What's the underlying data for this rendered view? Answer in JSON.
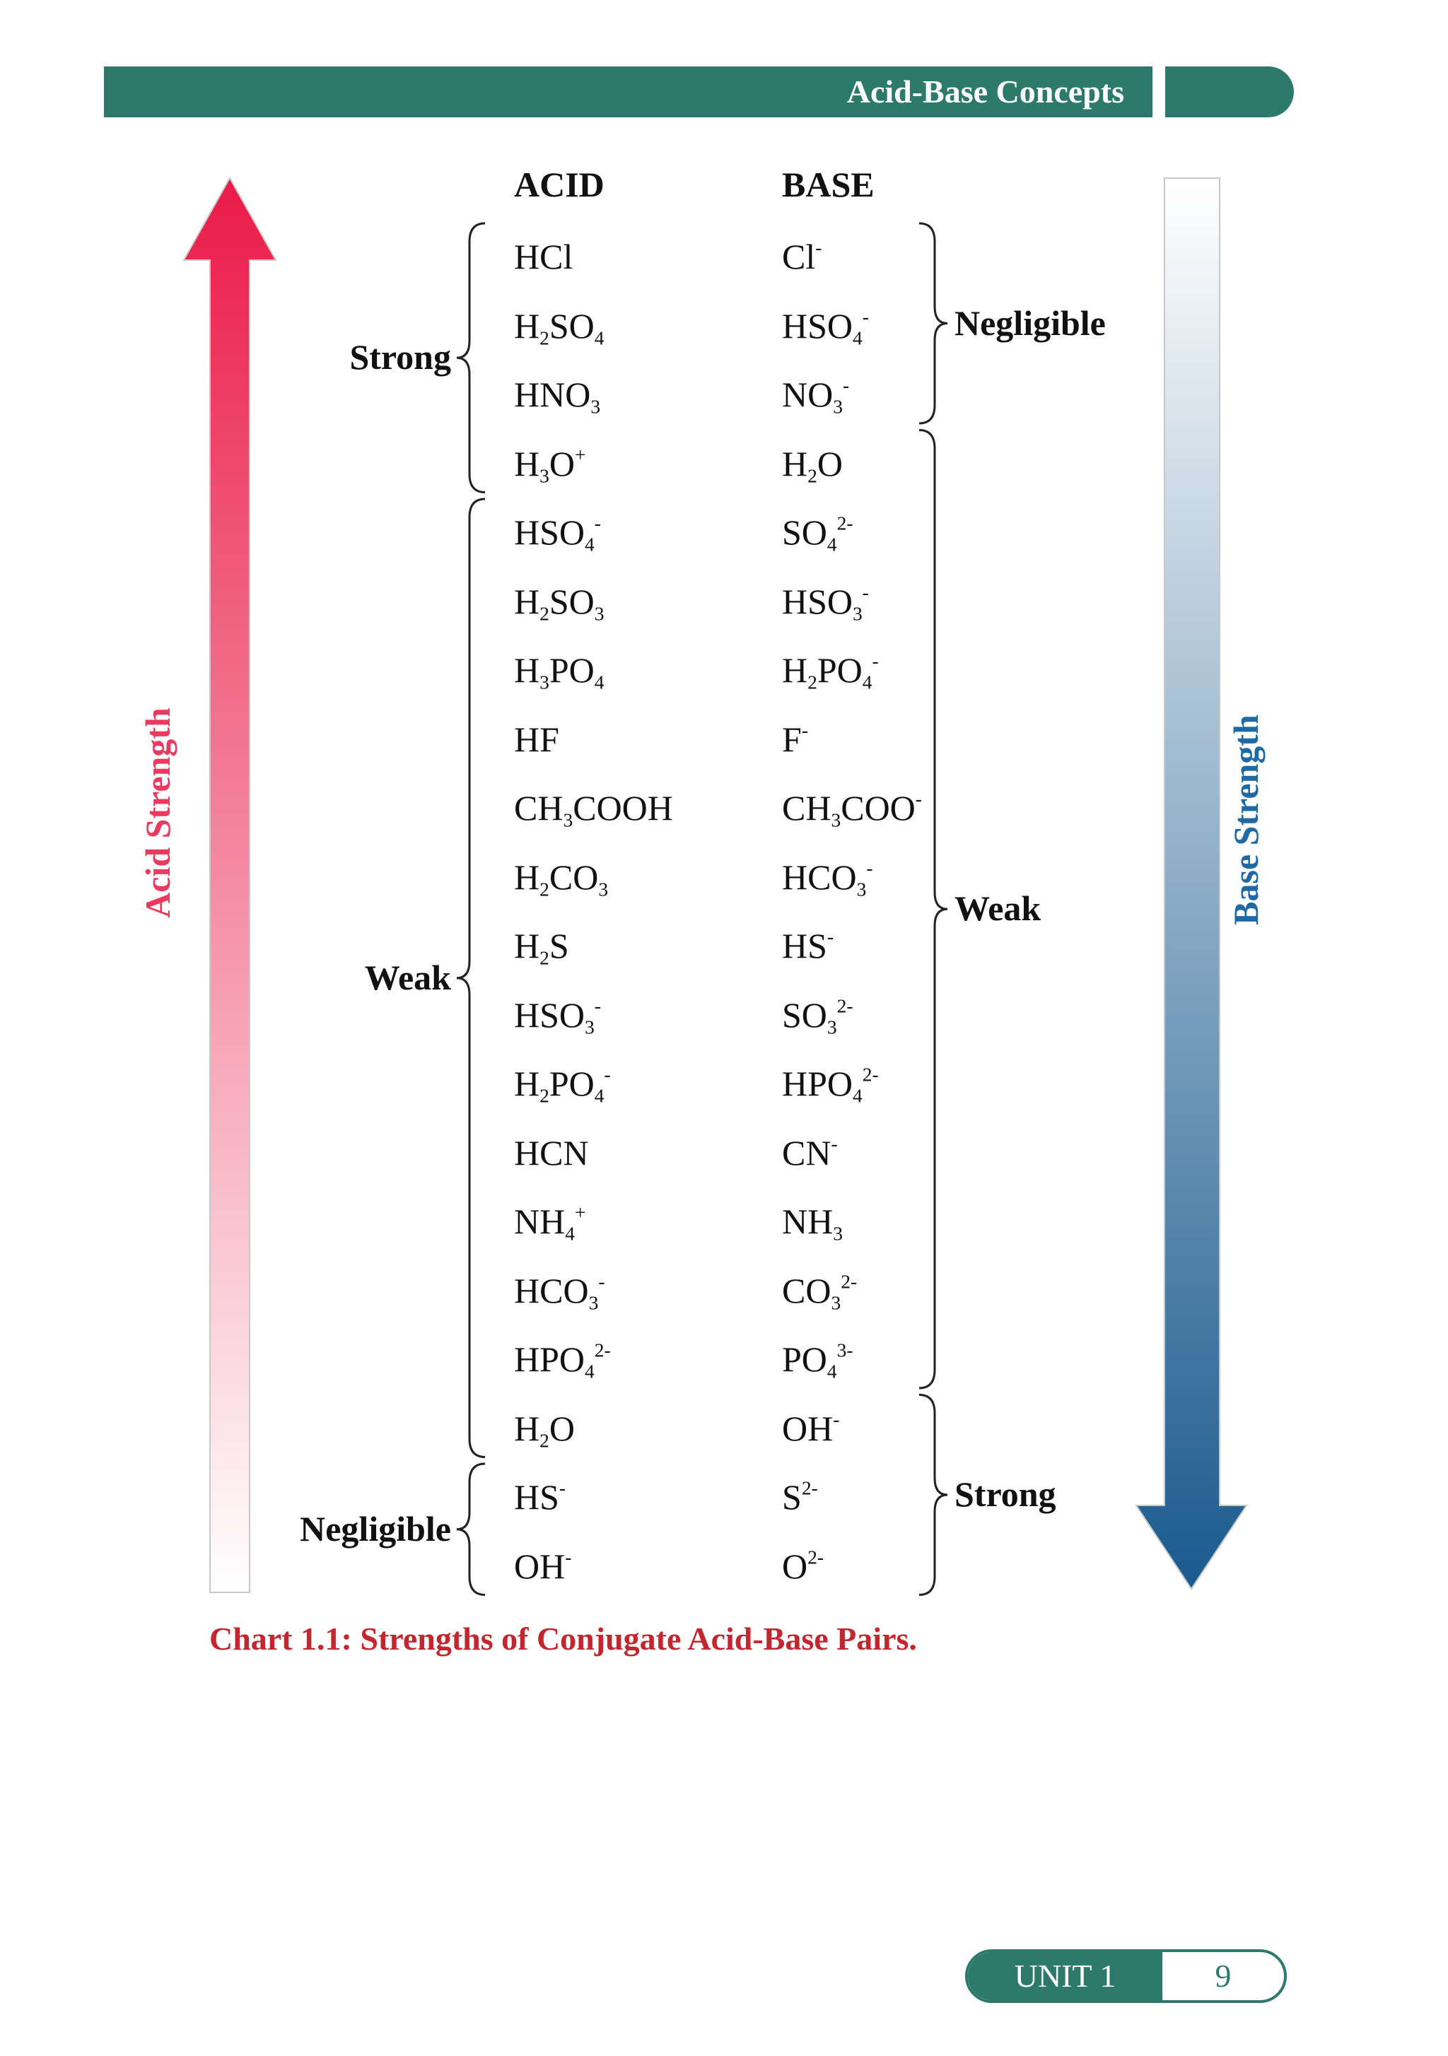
{
  "header": {
    "title": "Acid-Base  Concepts"
  },
  "columns": {
    "acid": "ACID",
    "base": "BASE"
  },
  "rows": [
    {
      "acid": [
        "HCl"
      ],
      "base": [
        "Cl",
        [
          "sup",
          "-"
        ]
      ]
    },
    {
      "acid": [
        "H",
        [
          "sub",
          "2"
        ],
        "SO",
        [
          "sub",
          "4"
        ]
      ],
      "base": [
        "HSO",
        [
          "sub",
          "4"
        ],
        [
          "sup",
          "-"
        ]
      ]
    },
    {
      "acid": [
        "HNO",
        [
          "sub",
          "3"
        ]
      ],
      "base": [
        "NO",
        [
          "sub",
          "3"
        ],
        [
          "sup",
          "-"
        ]
      ]
    },
    {
      "acid": [
        "H",
        [
          "sub",
          "3"
        ],
        "O",
        [
          "sup",
          "+"
        ]
      ],
      "base": [
        "H",
        [
          "sub",
          "2"
        ],
        "O"
      ]
    },
    {
      "acid": [
        "HSO",
        [
          "sub",
          "4"
        ],
        [
          "sup",
          "-"
        ]
      ],
      "base": [
        "SO",
        [
          "sub",
          "4"
        ],
        [
          "sup",
          "2-"
        ]
      ]
    },
    {
      "acid": [
        "H",
        [
          "sub",
          "2"
        ],
        "SO",
        [
          "sub",
          "3"
        ]
      ],
      "base": [
        "HSO",
        [
          "sub",
          "3"
        ],
        [
          "sup",
          "-"
        ]
      ]
    },
    {
      "acid": [
        "H",
        [
          "sub",
          "3"
        ],
        "PO",
        [
          "sub",
          "4"
        ]
      ],
      "base": [
        "H",
        [
          "sub",
          "2"
        ],
        "PO",
        [
          "sub",
          "4"
        ],
        [
          "sup",
          "-"
        ]
      ]
    },
    {
      "acid": [
        "HF"
      ],
      "base": [
        "F",
        [
          "sup",
          "-"
        ]
      ]
    },
    {
      "acid": [
        "CH",
        [
          "sub",
          "3"
        ],
        "COOH"
      ],
      "base": [
        "CH",
        [
          "sub",
          "3"
        ],
        "COO",
        [
          "sup",
          "-"
        ]
      ]
    },
    {
      "acid": [
        "H",
        [
          "sub",
          "2"
        ],
        "CO",
        [
          "sub",
          "3"
        ]
      ],
      "base": [
        "HCO",
        [
          "sub",
          "3"
        ],
        [
          "sup",
          "-"
        ]
      ]
    },
    {
      "acid": [
        "H",
        [
          "sub",
          "2"
        ],
        "S"
      ],
      "base": [
        "HS",
        [
          "sup",
          "-"
        ]
      ]
    },
    {
      "acid": [
        "HSO",
        [
          "sub",
          "3"
        ],
        [
          "sup",
          "-"
        ]
      ],
      "base": [
        "SO",
        [
          "sub",
          "3"
        ],
        [
          "sup",
          "2-"
        ]
      ]
    },
    {
      "acid": [
        "H",
        [
          "sub",
          "2"
        ],
        "PO",
        [
          "sub",
          "4"
        ],
        [
          "sup",
          "-"
        ]
      ],
      "base": [
        "HPO",
        [
          "sub",
          "4"
        ],
        [
          "sup",
          "2-"
        ]
      ]
    },
    {
      "acid": [
        "HCN"
      ],
      "base": [
        "CN",
        [
          "sup",
          "-"
        ]
      ]
    },
    {
      "acid": [
        "NH",
        [
          "sub",
          "4"
        ],
        [
          "sup",
          "+"
        ]
      ],
      "base": [
        "NH",
        [
          "sub",
          "3"
        ]
      ]
    },
    {
      "acid": [
        "HCO",
        [
          "sub",
          "3"
        ],
        [
          "sup",
          "-"
        ]
      ],
      "base": [
        "CO",
        [
          "sub",
          "3"
        ],
        [
          "sup",
          "2-"
        ]
      ]
    },
    {
      "acid": [
        "HPO",
        [
          "sub",
          "4"
        ],
        [
          "sup",
          "2-"
        ]
      ],
      "base": [
        "PO",
        [
          "sub",
          "4"
        ],
        [
          "sup",
          "3-"
        ]
      ]
    },
    {
      "acid": [
        "H",
        [
          "sub",
          "2"
        ],
        "O"
      ],
      "base": [
        "OH",
        [
          "sup",
          "-"
        ]
      ]
    },
    {
      "acid": [
        "HS",
        [
          "sup",
          "-"
        ]
      ],
      "base": [
        "S",
        [
          "sup",
          "2-"
        ]
      ]
    },
    {
      "acid": [
        "OH",
        [
          "sup",
          "-"
        ]
      ],
      "base": [
        "O",
        [
          "sup",
          "2-"
        ]
      ]
    }
  ],
  "acid_groups": [
    {
      "label": "Strong",
      "first_row": 0,
      "last_row": 3
    },
    {
      "label": "Weak",
      "first_row": 4,
      "last_row": 17
    },
    {
      "label": "Negligible",
      "first_row": 18,
      "last_row": 19
    }
  ],
  "base_groups": [
    {
      "label": "Negligible",
      "first_row": 0,
      "last_row": 2
    },
    {
      "label": "Weak",
      "first_row": 3,
      "last_row": 16
    },
    {
      "label": "Strong",
      "first_row": 17,
      "last_row": 19
    }
  ],
  "acid_axis_label": "Acid Strength",
  "base_axis_label": "Base Strength",
  "colors": {
    "header": "#2d7a6d",
    "acid_arrow_top": "#ea1a48",
    "acid_arrow_bottom": "#ffffff",
    "base_arrow_top": "#ffffff",
    "base_arrow_bottom": "#1a5a8e",
    "caption": "#c3262e"
  },
  "caption": "Chart 1.1: Strengths of Conjugate Acid-Base Pairs.",
  "footer": {
    "unit": "UNIT 1",
    "page": "9"
  }
}
